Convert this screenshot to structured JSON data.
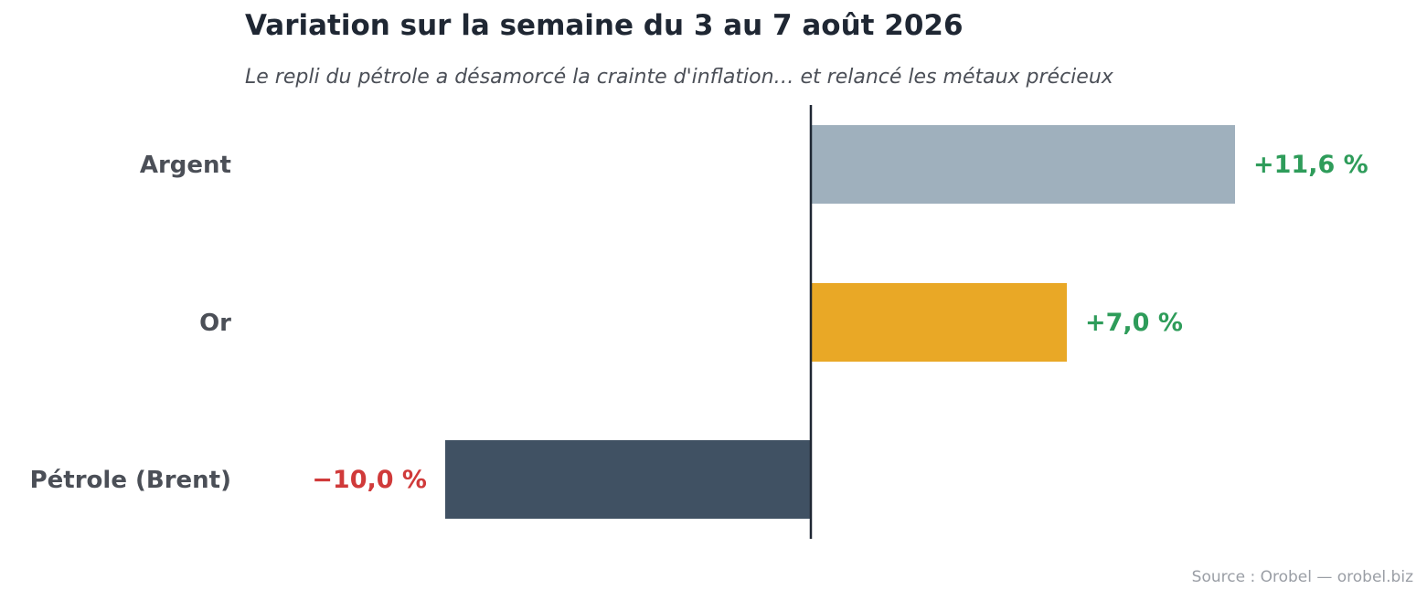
{
  "chart_data": {
    "type": "bar",
    "orientation": "horizontal",
    "title": "Variation sur la semaine du 3 au 7 août 2026",
    "subtitle": "Le repli du pétrole a désamorcé la crainte d'inflation… et relancé les métaux précieux",
    "xlabel": "",
    "ylabel": "",
    "categories": [
      "Argent",
      "Or",
      "Pétrole (Brent)"
    ],
    "values": [
      11.6,
      7.0,
      -10.0
    ],
    "value_labels": [
      "+11,6 %",
      "+7,0 %",
      "−10,0 %"
    ],
    "bar_colors": [
      "#9fb0bd",
      "#e9a826",
      "#405163"
    ],
    "label_colors": {
      "positive": "#2e9c5a",
      "negative": "#d03a3a"
    },
    "xlim": [
      -15,
      15
    ],
    "grid": false,
    "legend": "none",
    "source": "Source : Orobel — orobel.biz"
  }
}
